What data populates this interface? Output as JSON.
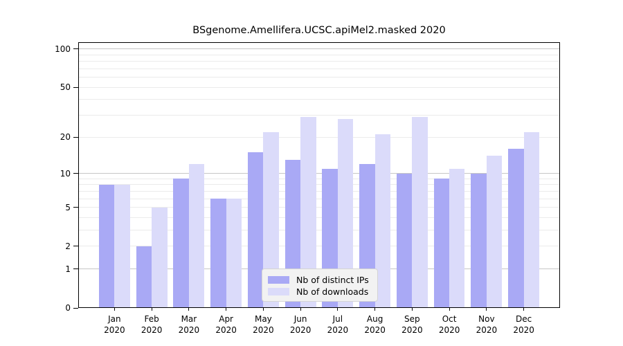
{
  "figure": {
    "title": "BSgenome.Amellifera.UCSC.apiMel2.masked 2020"
  },
  "chart_data": {
    "type": "bar",
    "title": "BSgenome.Amellifera.UCSC.apiMel2.masked 2020",
    "categories": [
      "Jan 2020",
      "Feb 2020",
      "Mar 2020",
      "Apr 2020",
      "May 2020",
      "Jun 2020",
      "Jul 2020",
      "Aug 2020",
      "Sep 2020",
      "Oct 2020",
      "Nov 2020",
      "Dec 2020"
    ],
    "series": [
      {
        "name": "Nb of distinct IPs",
        "key": "distinct-ips",
        "color": "#a9a9f5",
        "values": [
          8,
          2,
          9,
          6,
          15,
          13,
          11,
          12,
          10,
          9,
          10,
          16
        ]
      },
      {
        "name": "Nb of downloads",
        "key": "downloads",
        "color": "#dbdbfa",
        "values": [
          8,
          5,
          12,
          6,
          22,
          29,
          28,
          21,
          29,
          11,
          14,
          22
        ]
      }
    ],
    "xlabel": "",
    "ylabel": "",
    "y_scale": "log1p",
    "y_ticks": [
      0,
      1,
      2,
      5,
      10,
      20,
      50,
      100
    ],
    "ylim": [
      0,
      113
    ],
    "grid": "horizontal",
    "legend_position": "lower center"
  },
  "colors": {
    "background": "#ffffff",
    "bar_distinct_ips": "#a9a9f5",
    "bar_downloads": "#dbdbfa",
    "grid_major": "#c6c6c6",
    "grid_minor": "#ebebeb",
    "axis": "#000000",
    "legend_background": "#f2f2f2",
    "legend_border": "#d4d4d4",
    "text": "#000000"
  }
}
